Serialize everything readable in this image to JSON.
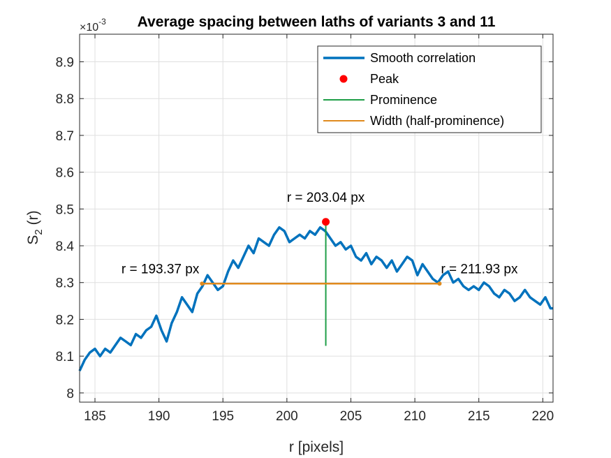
{
  "chart_data": {
    "type": "line",
    "title": "Average spacing between laths of variants 3 and 11",
    "xlabel": "r [pixels]",
    "ylabel_main": "S",
    "ylabel_sub": "2",
    "ylabel_rest": " (r)",
    "y_exponent_prefix": "×10",
    "y_exponent_power": "-3",
    "xlim": [
      183.8,
      220.8
    ],
    "ylim": [
      7.975,
      8.975
    ],
    "xticks": [
      185,
      190,
      195,
      200,
      205,
      210,
      215,
      220
    ],
    "xtick_labels": [
      "185",
      "190",
      "195",
      "200",
      "205",
      "210",
      "215",
      "220"
    ],
    "yticks": [
      8.0,
      8.1,
      8.2,
      8.3,
      8.4,
      8.5,
      8.6,
      8.7,
      8.8,
      8.9
    ],
    "ytick_labels": [
      "8",
      "8.1",
      "8.2",
      "8.3",
      "8.4",
      "8.5",
      "8.6",
      "8.7",
      "8.8",
      "8.9"
    ],
    "grid": true,
    "legend_position": "top-right",
    "legend": [
      {
        "name": "Smooth correlation",
        "kind": "line",
        "color": "#0072BD"
      },
      {
        "name": "Peak",
        "kind": "marker",
        "color": "#FF0000"
      },
      {
        "name": "Prominence",
        "kind": "line",
        "color": "#1E9E47"
      },
      {
        "name": "Width (half-prominence)",
        "kind": "line",
        "color": "#E08A1E"
      }
    ],
    "series": [
      {
        "name": "Smooth correlation",
        "color": "#0072BD",
        "x": [
          183.8,
          184.2,
          184.6,
          185.0,
          185.4,
          185.8,
          186.2,
          186.6,
          187.0,
          187.4,
          187.8,
          188.2,
          188.6,
          189.0,
          189.4,
          189.8,
          190.2,
          190.6,
          191.0,
          191.4,
          191.8,
          192.2,
          192.6,
          193.0,
          193.4,
          193.8,
          194.2,
          194.6,
          195.0,
          195.4,
          195.8,
          196.2,
          196.6,
          197.0,
          197.4,
          197.8,
          198.2,
          198.6,
          199.0,
          199.4,
          199.8,
          200.2,
          200.6,
          201.0,
          201.4,
          201.8,
          202.2,
          202.6,
          203.0,
          203.4,
          203.8,
          204.2,
          204.6,
          205.0,
          205.4,
          205.8,
          206.2,
          206.6,
          207.0,
          207.4,
          207.8,
          208.2,
          208.6,
          209.0,
          209.4,
          209.8,
          210.2,
          210.6,
          211.0,
          211.4,
          211.8,
          212.2,
          212.6,
          213.0,
          213.4,
          213.8,
          214.2,
          214.6,
          215.0,
          215.4,
          215.8,
          216.2,
          216.6,
          217.0,
          217.4,
          217.8,
          218.2,
          218.6,
          219.0,
          219.4,
          219.8,
          220.2,
          220.6,
          220.8
        ],
        "y": [
          8.06,
          8.09,
          8.11,
          8.12,
          8.1,
          8.12,
          8.11,
          8.13,
          8.15,
          8.14,
          8.13,
          8.16,
          8.15,
          8.17,
          8.18,
          8.21,
          8.17,
          8.14,
          8.19,
          8.22,
          8.26,
          8.24,
          8.22,
          8.27,
          8.29,
          8.32,
          8.3,
          8.28,
          8.29,
          8.33,
          8.36,
          8.34,
          8.37,
          8.4,
          8.38,
          8.42,
          8.41,
          8.4,
          8.43,
          8.45,
          8.44,
          8.41,
          8.42,
          8.43,
          8.42,
          8.44,
          8.43,
          8.45,
          8.44,
          8.42,
          8.4,
          8.41,
          8.39,
          8.4,
          8.37,
          8.36,
          8.38,
          8.35,
          8.37,
          8.36,
          8.34,
          8.36,
          8.33,
          8.35,
          8.37,
          8.36,
          8.32,
          8.35,
          8.33,
          8.31,
          8.3,
          8.32,
          8.33,
          8.3,
          8.31,
          8.29,
          8.28,
          8.29,
          8.28,
          8.3,
          8.29,
          8.27,
          8.26,
          8.28,
          8.27,
          8.25,
          8.26,
          8.28,
          8.26,
          8.25,
          8.24,
          8.26,
          8.23,
          8.23
        ]
      }
    ],
    "peak": {
      "x": 203.04,
      "y": 8.465,
      "label": "r = 203.04 px"
    },
    "prominence": {
      "x": 203.04,
      "y_low": 8.128,
      "y_high": 8.465
    },
    "width": {
      "x_left": 193.37,
      "x_right": 211.93,
      "y": 8.297,
      "label_left": "r = 193.37 px",
      "label_right": "r = 211.93 px"
    }
  }
}
